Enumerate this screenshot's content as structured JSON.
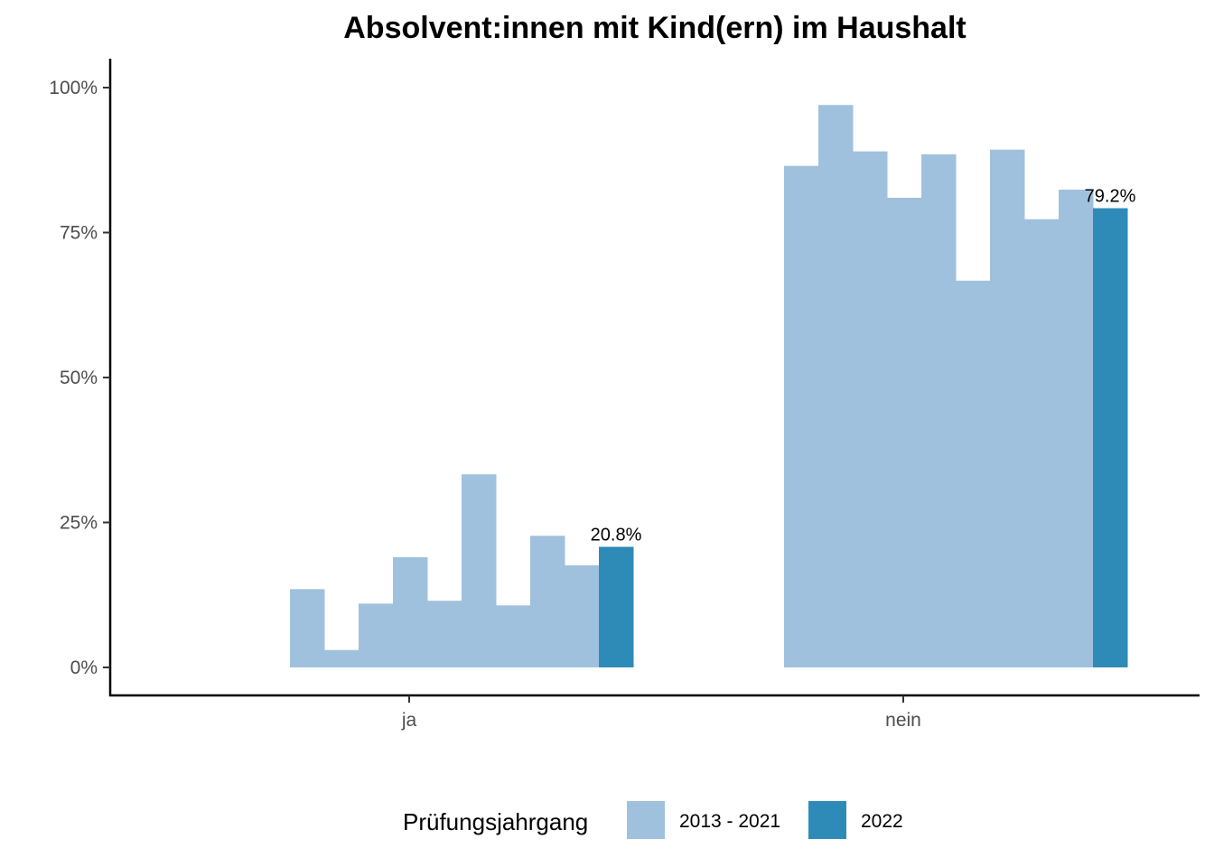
{
  "chart_data": {
    "type": "bar",
    "title": "Absolvent:innen mit Kind(ern) im Haushalt",
    "xlabel": "",
    "ylabel": "",
    "categories": [
      "ja",
      "nein"
    ],
    "ylim": [
      0,
      1.05
    ],
    "y_ticks": [
      0,
      0.25,
      0.5,
      0.75,
      1.0
    ],
    "y_tick_labels": [
      "0%",
      "25%",
      "50%",
      "75%",
      "100%"
    ],
    "grid": false,
    "legend_position": "bottom",
    "legend_title": "Prüfungsjahrgang",
    "legend": [
      {
        "label": "2013 - 2021",
        "color": "#a0c1dd"
      },
      {
        "label": "2022",
        "color": "#2e8bb7"
      }
    ],
    "groups": [
      {
        "category": "ja",
        "bars": [
          {
            "group": "2013 - 2021",
            "value": 0.135
          },
          {
            "group": "2013 - 2021",
            "value": 0.03
          },
          {
            "group": "2013 - 2021",
            "value": 0.11
          },
          {
            "group": "2013 - 2021",
            "value": 0.19
          },
          {
            "group": "2013 - 2021",
            "value": 0.115
          },
          {
            "group": "2013 - 2021",
            "value": 0.333
          },
          {
            "group": "2013 - 2021",
            "value": 0.107
          },
          {
            "group": "2013 - 2021",
            "value": 0.227
          },
          {
            "group": "2013 - 2021",
            "value": 0.176
          },
          {
            "group": "2022",
            "value": 0.208,
            "label": "20.8%"
          }
        ]
      },
      {
        "category": "nein",
        "bars": [
          {
            "group": "2013 - 2021",
            "value": 0.865
          },
          {
            "group": "2013 - 2021",
            "value": 0.97
          },
          {
            "group": "2013 - 2021",
            "value": 0.89
          },
          {
            "group": "2013 - 2021",
            "value": 0.81
          },
          {
            "group": "2013 - 2021",
            "value": 0.885
          },
          {
            "group": "2013 - 2021",
            "value": 0.667
          },
          {
            "group": "2013 - 2021",
            "value": 0.893
          },
          {
            "group": "2013 - 2021",
            "value": 0.773
          },
          {
            "group": "2013 - 2021",
            "value": 0.824
          },
          {
            "group": "2022",
            "value": 0.792,
            "label": "79.2%"
          }
        ]
      }
    ]
  }
}
